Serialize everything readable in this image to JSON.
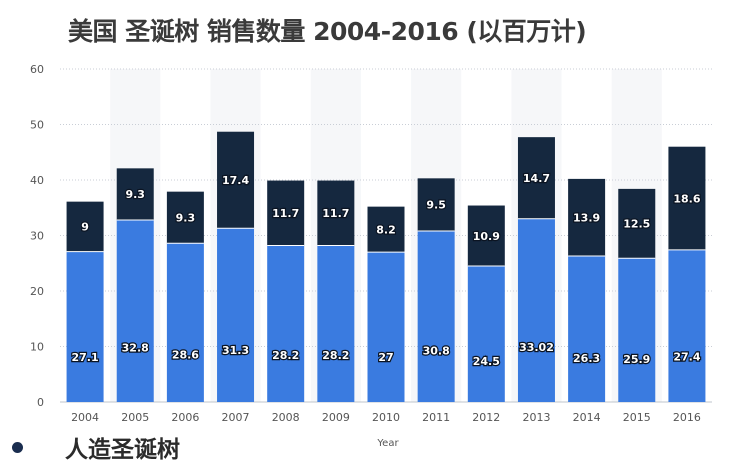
{
  "chart_data": {
    "type": "bar",
    "stacked": true,
    "title": "美国 圣诞树 销售数量 2004-2016 (以百万计)",
    "xlabel": "Year",
    "ylabel": "",
    "ylim": [
      0,
      60
    ],
    "yticks": [
      0,
      10,
      20,
      30,
      40,
      50,
      60
    ],
    "grid": true,
    "categories": [
      "2004",
      "2005",
      "2006",
      "2007",
      "2008",
      "2009",
      "2010",
      "2011",
      "2012",
      "2013",
      "2014",
      "2015",
      "2016"
    ],
    "series": [
      {
        "name": "人造圣诞树",
        "color": "#3a7be0",
        "values": [
          27.1,
          32.8,
          28.6,
          31.3,
          28.2,
          28.2,
          27,
          30.8,
          24.5,
          33.02,
          26.3,
          25.9,
          27.4
        ],
        "labels": [
          "27.1",
          "32.8",
          "28.6",
          "31.3",
          "28.2",
          "28.2",
          "27",
          "30.8",
          "24.5",
          "33.02",
          "26.3",
          "25.9",
          "27.4"
        ]
      },
      {
        "color": "#15283f",
        "values": [
          9,
          9.3,
          9.3,
          17.4,
          11.7,
          11.7,
          8.2,
          9.5,
          10.9,
          14.7,
          13.9,
          12.5,
          18.6
        ],
        "labels": [
          "9",
          "9.3",
          "9.3",
          "17.4",
          "11.7",
          "11.7",
          "8.2",
          "9.5",
          "10.9",
          "14.7",
          "13.9",
          "12.5",
          "18.6"
        ]
      }
    ],
    "legend": {
      "position": "bottom-left",
      "items": [
        "人造圣诞树"
      ]
    }
  }
}
